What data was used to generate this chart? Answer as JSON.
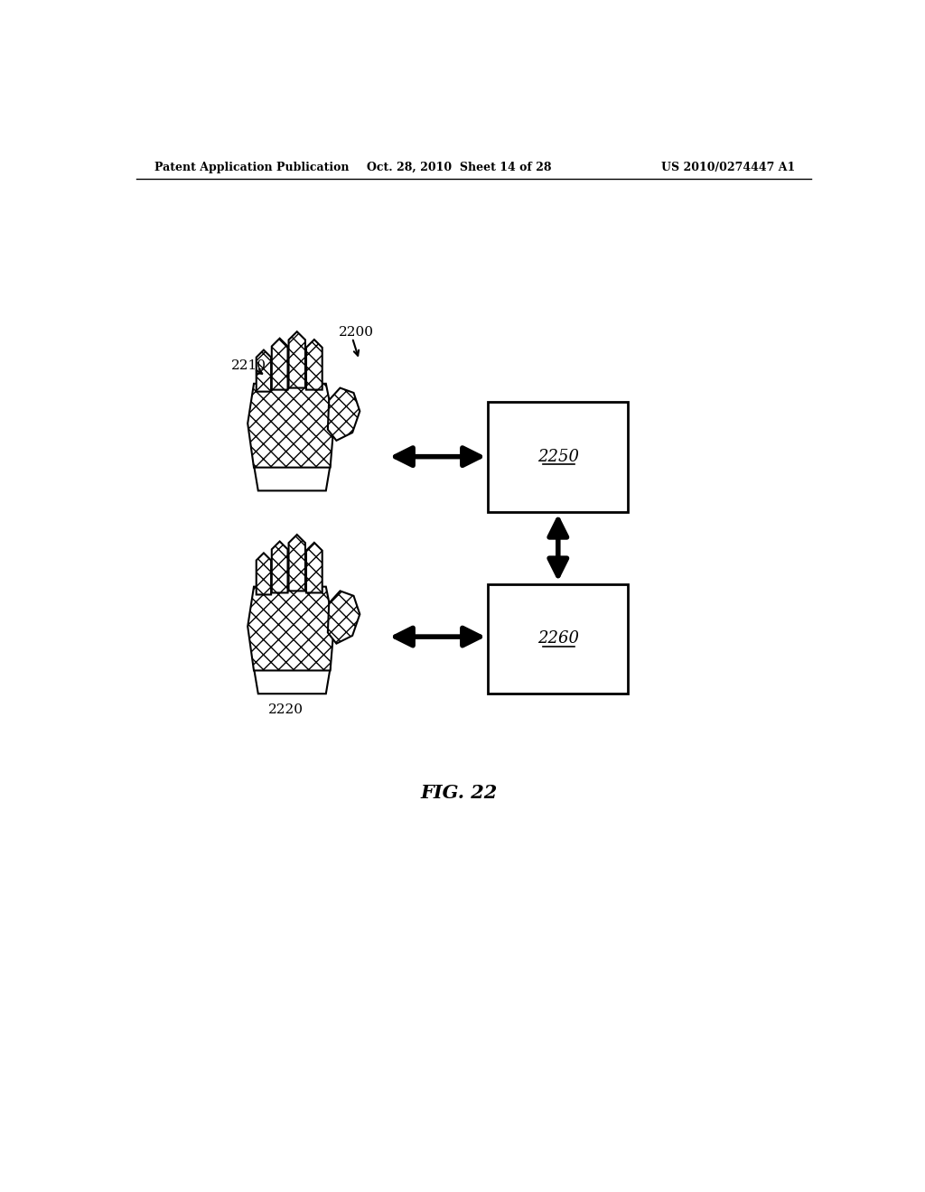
{
  "bg_color": "#ffffff",
  "header_left": "Patent Application Publication",
  "header_mid": "Oct. 28, 2010  Sheet 14 of 28",
  "header_right": "US 2010/0274447 A1",
  "label_2200": "2200",
  "label_2210": "2210",
  "label_2220": "2220",
  "label_2250": "2250",
  "label_2260": "2260",
  "fig_label": "FIG. 22",
  "arrow_color": "#000000",
  "text_color": "#000000"
}
